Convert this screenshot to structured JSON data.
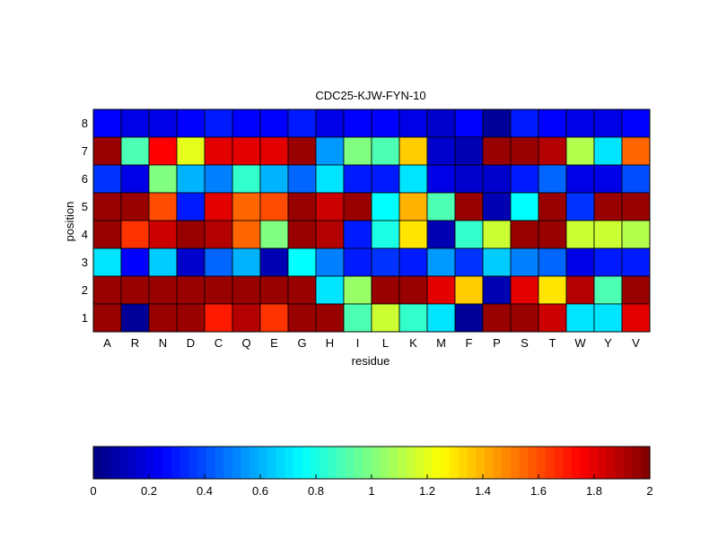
{
  "chart_data": {
    "type": "heatmap",
    "title": "CDC25-KJW-FYN-10",
    "xlabel": "residue",
    "ylabel": "position",
    "x_categories": [
      "A",
      "R",
      "N",
      "D",
      "C",
      "Q",
      "E",
      "G",
      "H",
      "I",
      "L",
      "K",
      "M",
      "F",
      "P",
      "S",
      "T",
      "W",
      "Y",
      "V"
    ],
    "y_categories": [
      "8",
      "7",
      "6",
      "5",
      "4",
      "3",
      "2",
      "1"
    ],
    "values": [
      [
        0.25,
        0.2,
        0.2,
        0.25,
        0.3,
        0.25,
        0.25,
        0.3,
        0.2,
        0.25,
        0.25,
        0.2,
        0.15,
        0.25,
        0.05,
        0.3,
        0.25,
        0.2,
        0.2,
        0.25
      ],
      [
        1.95,
        0.9,
        1.75,
        1.2,
        1.8,
        1.8,
        1.8,
        1.95,
        0.55,
        1.0,
        0.9,
        1.35,
        0.15,
        0.1,
        1.95,
        1.95,
        1.9,
        1.1,
        0.7,
        1.55
      ],
      [
        0.35,
        0.2,
        1.0,
        0.6,
        0.5,
        0.85,
        0.6,
        0.45,
        0.7,
        0.3,
        0.3,
        0.7,
        0.2,
        0.15,
        0.15,
        0.3,
        0.45,
        0.2,
        0.2,
        0.4
      ],
      [
        1.95,
        1.95,
        1.6,
        0.3,
        1.8,
        1.55,
        1.6,
        1.95,
        1.85,
        1.95,
        0.75,
        1.4,
        0.9,
        1.95,
        0.1,
        0.75,
        1.95,
        0.35,
        1.95,
        1.95
      ],
      [
        1.95,
        1.65,
        1.85,
        1.95,
        1.9,
        1.55,
        1.0,
        1.95,
        1.9,
        0.3,
        0.8,
        1.3,
        0.1,
        0.85,
        1.15,
        1.95,
        1.95,
        1.15,
        1.15,
        1.1
      ],
      [
        0.7,
        0.25,
        0.65,
        0.15,
        0.45,
        0.6,
        0.1,
        0.75,
        0.5,
        0.3,
        0.35,
        0.3,
        0.55,
        0.35,
        0.65,
        0.5,
        0.45,
        0.2,
        0.3,
        0.3
      ],
      [
        1.95,
        1.95,
        1.95,
        1.95,
        1.95,
        1.95,
        1.95,
        1.95,
        0.7,
        1.05,
        1.95,
        1.95,
        1.8,
        1.35,
        0.1,
        1.8,
        1.3,
        1.9,
        0.9,
        1.95
      ],
      [
        1.95,
        0.05,
        1.95,
        1.95,
        1.7,
        1.9,
        1.65,
        1.95,
        1.95,
        0.9,
        1.15,
        0.85,
        0.7,
        0.05,
        1.95,
        1.95,
        1.85,
        0.7,
        0.7,
        1.8
      ]
    ],
    "colorbar": {
      "range": [
        0,
        2
      ],
      "ticks": [
        "0",
        "0.2",
        "0.4",
        "0.6",
        "0.8",
        "1",
        "1.2",
        "1.4",
        "1.6",
        "1.8",
        "2"
      ],
      "colormap": "jet"
    }
  }
}
